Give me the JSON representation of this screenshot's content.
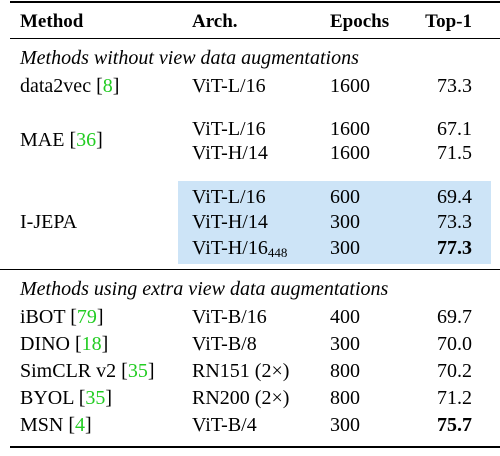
{
  "table": {
    "headers": {
      "method": "Method",
      "arch": "Arch.",
      "epochs": "Epochs",
      "top1": "Top-1"
    },
    "section_without": "Methods without view data augmentations",
    "section_with": "Methods using extra view data augmentations",
    "highlight_color": "#cde4f7",
    "citation_color": "#22cc22",
    "rows_without": [
      {
        "method": "data2vec",
        "cite": "8",
        "arch": "ViT-L/16",
        "epochs": "1600",
        "top1": "73.3"
      },
      {
        "method": "MAE",
        "cite": "36",
        "entries": [
          {
            "arch": "ViT-L/16",
            "epochs": "1600",
            "top1": "67.1"
          },
          {
            "arch": "ViT-H/14",
            "epochs": "1600",
            "top1": "71.5"
          }
        ]
      },
      {
        "method": "I-JEPA",
        "highlighted": true,
        "entries": [
          {
            "arch": "ViT-L/16",
            "epochs": "600",
            "top1": "69.4"
          },
          {
            "arch": "ViT-H/14",
            "epochs": "300",
            "top1": "73.3"
          },
          {
            "arch": "ViT-H/16",
            "arch_sub": "448",
            "epochs": "300",
            "top1": "77.3",
            "bold": true
          }
        ]
      }
    ],
    "rows_with": [
      {
        "method": "iBOT",
        "cite": "79",
        "arch": "ViT-B/16",
        "epochs": "400",
        "top1": "69.7"
      },
      {
        "method": "DINO",
        "cite": "18",
        "arch": "ViT-B/8",
        "epochs": "300",
        "top1": "70.0"
      },
      {
        "method": "SimCLR v2",
        "cite": "35",
        "arch": "RN151 (2×)",
        "epochs": "800",
        "top1": "70.2"
      },
      {
        "method": "BYOL",
        "cite": "35",
        "arch": "RN200 (2×)",
        "epochs": "800",
        "top1": "71.2"
      },
      {
        "method": "MSN",
        "cite": "4",
        "arch": "ViT-B/4",
        "epochs": "300",
        "top1": "75.7",
        "bold": true
      }
    ]
  }
}
